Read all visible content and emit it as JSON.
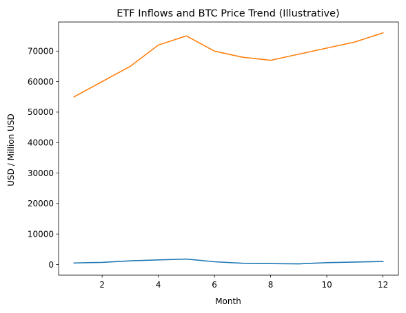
{
  "chart_data": {
    "type": "line",
    "title": "ETF Inflows and BTC Price Trend (Illustrative)",
    "xlabel": "Month",
    "ylabel": "USD / Million USD",
    "x": [
      1,
      2,
      3,
      4,
      5,
      6,
      7,
      8,
      9,
      10,
      11,
      12
    ],
    "xlim": [
      0.45,
      12.55
    ],
    "ylim": [
      -3500,
      79550
    ],
    "xticks": [
      2,
      4,
      6,
      8,
      10,
      12
    ],
    "yticks": [
      0,
      10000,
      20000,
      30000,
      40000,
      50000,
      60000,
      70000
    ],
    "grid": false,
    "series": [
      {
        "color": "#1f77b4",
        "values": [
          500,
          700,
          1200,
          1500,
          1800,
          900,
          400,
          300,
          200,
          600,
          800,
          1000
        ]
      },
      {
        "color": "#ff7f0e",
        "values": [
          55000,
          60000,
          65000,
          72000,
          75000,
          70000,
          68000,
          67000,
          69000,
          71000,
          73000,
          76000
        ]
      }
    ]
  }
}
